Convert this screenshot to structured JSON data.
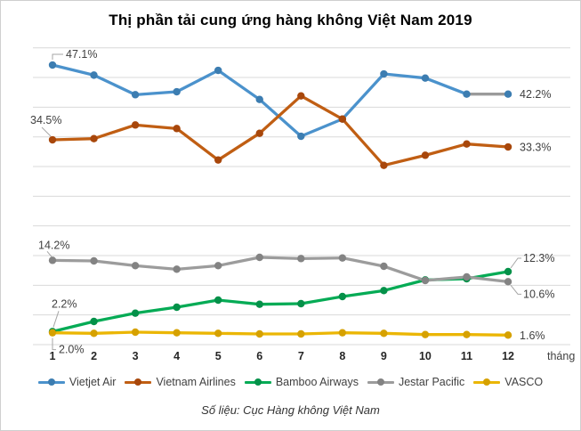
{
  "chart_data": {
    "type": "line",
    "title": "Thị phần tải cung ứng hàng không Việt Nam 2019",
    "xlabel": "tháng",
    "x_labels": [
      "1",
      "2",
      "3",
      "4",
      "5",
      "6",
      "7",
      "8",
      "9",
      "10",
      "11",
      "12"
    ],
    "ylim": [
      0,
      50
    ],
    "grid_step": 5,
    "grid": true,
    "legend_position": "bottom",
    "series": [
      {
        "name": "Vietjet Air",
        "color": "#4B92CC",
        "marker_color": "#3C7DB1",
        "values": [
          47.1,
          45.4,
          42.1,
          42.6,
          46.2,
          41.3,
          35.1,
          38.0,
          45.6,
          44.9,
          42.2,
          42.2
        ],
        "segment_overrides": [
          {
            "from": 11,
            "to": 12,
            "color": "#9b9b9b"
          }
        ]
      },
      {
        "name": "Vietnam Airlines",
        "color": "#C05E13",
        "marker_color": "#A8470B",
        "values": [
          34.5,
          34.7,
          37.0,
          36.4,
          31.1,
          35.6,
          41.9,
          38.0,
          30.2,
          31.9,
          33.8,
          33.3
        ]
      },
      {
        "name": "Bamboo Airways",
        "color": "#05AB55",
        "marker_color": "#049149",
        "values": [
          2.2,
          3.9,
          5.3,
          6.3,
          7.5,
          6.8,
          6.9,
          8.1,
          9.1,
          10.9,
          11.1,
          12.3
        ]
      },
      {
        "name": "Jestar Pacific",
        "color": "#9C9C9C",
        "marker_color": "#838383",
        "values": [
          14.2,
          14.1,
          13.3,
          12.7,
          13.3,
          14.7,
          14.5,
          14.6,
          13.2,
          10.8,
          11.4,
          10.6
        ]
      },
      {
        "name": "VASCO",
        "color": "#EBB604",
        "marker_color": "#D6A100",
        "values": [
          2.0,
          1.9,
          2.1,
          2.0,
          1.9,
          1.8,
          1.8,
          2.0,
          1.9,
          1.7,
          1.7,
          1.6
        ]
      }
    ],
    "annotations": [
      {
        "series": "Vietjet Air",
        "month": 1,
        "text": "47.1%",
        "placement": "callout-above"
      },
      {
        "series": "Vietnam Airlines",
        "month": 1,
        "text": "34.5%",
        "placement": "above-left-far"
      },
      {
        "series": "Jestar Pacific",
        "month": 1,
        "text": "14.2%",
        "placement": "above-left"
      },
      {
        "series": "Bamboo Airways",
        "month": 1,
        "text": "2.2%",
        "placement": "callout-above-steep"
      },
      {
        "series": "VASCO",
        "month": 1,
        "text": "2.0%",
        "placement": "callout-below"
      },
      {
        "series": "Vietjet Air",
        "month": 12,
        "text": "42.2%",
        "placement": "right"
      },
      {
        "series": "Vietnam Airlines",
        "month": 12,
        "text": "33.3%",
        "placement": "right"
      },
      {
        "series": "Bamboo Airways",
        "month": 12,
        "text": "12.3%",
        "placement": "callout-up-right"
      },
      {
        "series": "Jestar Pacific",
        "month": 12,
        "text": "10.6%",
        "placement": "callout-down-right"
      },
      {
        "series": "VASCO",
        "month": 12,
        "text": "1.6%",
        "placement": "right"
      }
    ],
    "source": "Số liệu: Cục Hàng không Việt Nam"
  },
  "colors": {
    "grid": "#d9d9d9",
    "leader": "#a6a6a6",
    "axis_text": "#262626",
    "annotation_text": "#404040"
  }
}
